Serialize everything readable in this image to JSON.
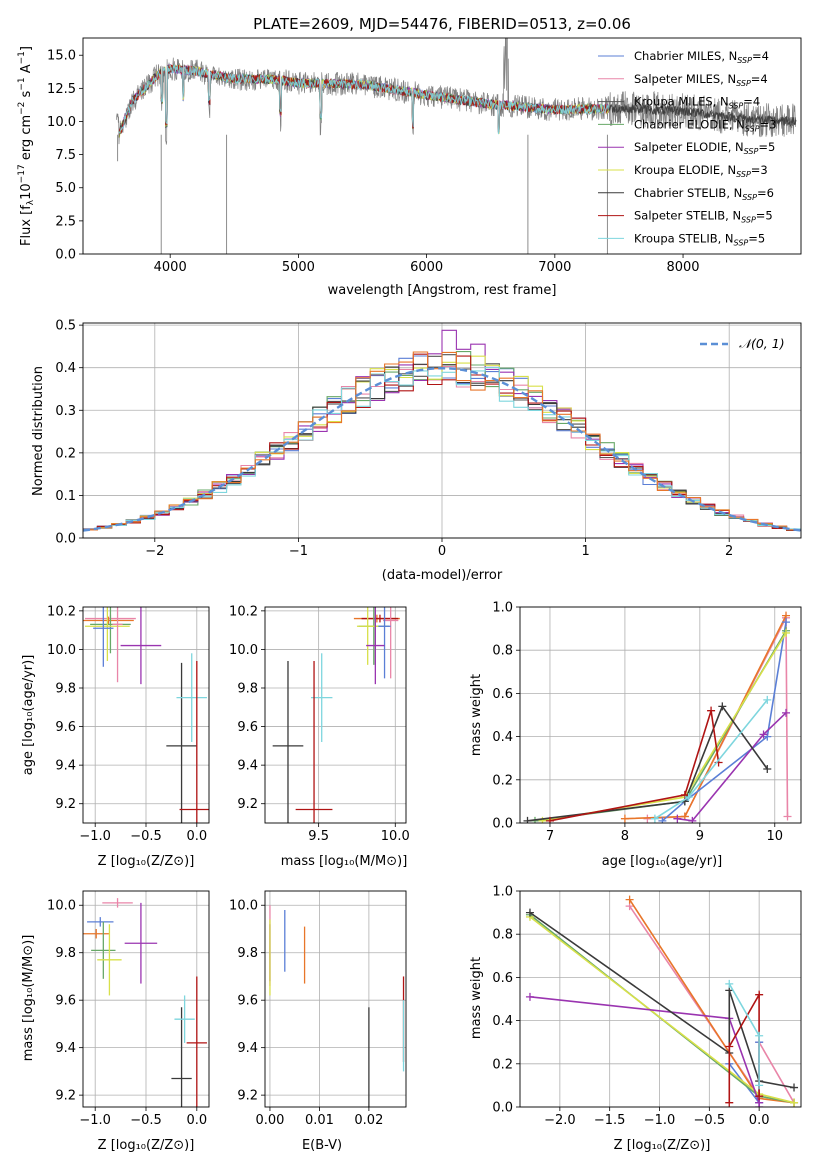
{
  "colors": {
    "chab_miles": "#5b7fd6",
    "salp_miles": "#e985a8",
    "krou_miles": "#555555",
    "chab_elodie": "#67a867",
    "salp_elodie": "#9a34b0",
    "krou_elodie": "#d8e04a",
    "chab_stelib": "#3a3a3a",
    "salp_stelib": "#b01414",
    "krou_stelib": "#7ed6de",
    "orange": "#e8762a",
    "normal": "#5b8fd6"
  },
  "chart_data": [
    {
      "id": "spectrum",
      "type": "line",
      "title": "PLATE=2609, MJD=54476, FIBERID=0513, z=0.06",
      "xlabel": "wavelength [Angstrom, rest frame]",
      "ylabel": "Flux [f_λ 10⁻¹⁷ erg cm⁻² s⁻¹ A⁻¹]",
      "xlim": [
        3320,
        8920
      ],
      "ylim": [
        0,
        16.3
      ],
      "xticks": [
        "4000",
        "5000",
        "6000",
        "7000",
        "8000"
      ],
      "yticks": [
        "0.0",
        "2.5",
        "5.0",
        "7.5",
        "10.0",
        "12.5",
        "15.0"
      ],
      "legend_position": "upper-right",
      "legend": [
        {
          "label": "Chabrier MILES, N",
          "sub": "SSP",
          "suffix": "=4",
          "color": "#5b7fd6"
        },
        {
          "label": "Salpeter MILES, N",
          "sub": "SSP",
          "suffix": "=4",
          "color": "#e985a8"
        },
        {
          "label": "Kroupa MILES, N",
          "sub": "SSP",
          "suffix": "=4",
          "color": "#555555"
        },
        {
          "label": "Chabrier ELODIE, N",
          "sub": "SSP",
          "suffix": "=3",
          "color": "#67a867"
        },
        {
          "label": "Salpeter ELODIE, N",
          "sub": "SSP",
          "suffix": "=5",
          "color": "#9a34b0"
        },
        {
          "label": "Kroupa ELODIE, N",
          "sub": "SSP",
          "suffix": "=3",
          "color": "#d8e04a"
        },
        {
          "label": "Chabrier STELIB, N",
          "sub": "SSP",
          "suffix": "=6",
          "color": "#3a3a3a"
        },
        {
          "label": "Salpeter STELIB, N",
          "sub": "SSP",
          "suffix": "=5",
          "color": "#b01414"
        },
        {
          "label": "Kroupa STELIB, N",
          "sub": "SSP",
          "suffix": "=5",
          "color": "#7ed6de"
        }
      ],
      "continuum": [
        [
          3600,
          9.0
        ],
        [
          3700,
          11.5
        ],
        [
          3800,
          12.5
        ],
        [
          3900,
          13.5
        ],
        [
          4000,
          14.0
        ],
        [
          4200,
          13.8
        ],
        [
          4500,
          13.2
        ],
        [
          4800,
          13.2
        ],
        [
          5000,
          12.9
        ],
        [
          5500,
          12.8
        ],
        [
          6000,
          12.0
        ],
        [
          6500,
          11.3
        ],
        [
          7000,
          10.9
        ],
        [
          7500,
          11.0
        ],
        [
          8000,
          10.8
        ],
        [
          8500,
          10.2
        ],
        [
          8800,
          10.0
        ]
      ],
      "absorption_lines": [
        [
          3934,
          2.5
        ],
        [
          3969,
          5.0
        ],
        [
          4102,
          2.5
        ],
        [
          4305,
          2.5
        ],
        [
          4861,
          3.0
        ],
        [
          5175,
          3.0
        ],
        [
          5893,
          3.0
        ],
        [
          6563,
          2.5
        ]
      ]
    },
    {
      "id": "residuals",
      "type": "histogram",
      "xlabel": "(data-model)/error",
      "ylabel": "Normed distribution",
      "xlim": [
        -2.5,
        2.5
      ],
      "ylim": [
        0,
        0.505
      ],
      "xticks": [
        "−2",
        "−1",
        "0",
        "1",
        "2"
      ],
      "yticks": [
        "0.0",
        "0.1",
        "0.2",
        "0.3",
        "0.4",
        "0.5"
      ],
      "legend_position": "upper-right",
      "legend": [
        {
          "label": "𝒩(0, 1)",
          "color": "#5b8fd6",
          "style": "dashed"
        }
      ],
      "bin_width": 0.1
    },
    {
      "id": "age_vs_Z",
      "type": "errorbar",
      "xlabel": "Z [log₁₀(Z/Z⊙)]",
      "ylabel": "age  [log₁₀(age/yr)]",
      "xlim": [
        -1.12,
        0.12
      ],
      "ylim": [
        9.1,
        10.22
      ],
      "xticks": [
        "−1.0",
        "−0.5",
        "0.0"
      ],
      "yticks": [
        "9.2",
        "9.4",
        "9.6",
        "9.8",
        "10.0",
        "10.2"
      ],
      "points": [
        {
          "x": -0.85,
          "y": 10.16,
          "xerr": 0.25,
          "yerr": 0.02,
          "color": "#e985a8"
        },
        {
          "x": -0.87,
          "y": 10.15,
          "xerr": 0.25,
          "yerr": 0.02,
          "color": "#e8762a"
        },
        {
          "x": -0.85,
          "y": 10.13,
          "xerr": 0.2,
          "yerr": 0.15,
          "color": "#67a867"
        },
        {
          "x": -0.88,
          "y": 10.12,
          "xerr": 0.22,
          "yerr": 0.18,
          "color": "#d8e04a"
        },
        {
          "x": -0.92,
          "y": 10.11,
          "xerr": 0.1,
          "yerr": 0.2,
          "color": "#5b7fd6"
        },
        {
          "x": -0.78,
          "y": 10.13,
          "xerr": 0.05,
          "yerr": 0.3,
          "color": "#e985a8"
        },
        {
          "x": -0.55,
          "y": 10.02,
          "xerr": 0.2,
          "yerr": 0.2,
          "color": "#9a34b0"
        },
        {
          "x": -0.15,
          "y": 9.5,
          "xerr": 0.15,
          "yerr": 0.43,
          "color": "#3a3a3a"
        },
        {
          "x": -0.05,
          "y": 9.75,
          "xerr": 0.15,
          "yerr": 0.23,
          "color": "#7ed6de"
        },
        {
          "x": 0.0,
          "y": 9.17,
          "xerr": 0.17,
          "yerr": 0.77,
          "color": "#b01414"
        }
      ]
    },
    {
      "id": "age_vs_mass",
      "type": "errorbar",
      "xlabel": "mass [log₁₀(M/M⊙)]",
      "ylabel": "",
      "xlim": [
        9.15,
        10.07
      ],
      "ylim": [
        9.1,
        10.22
      ],
      "xticks": [
        "9.5",
        "10.0"
      ],
      "yticks": [
        "9.2",
        "9.4",
        "9.6",
        "9.8",
        "10.0",
        "10.2"
      ],
      "points": [
        {
          "x": 9.88,
          "y": 10.16,
          "xerr": 0.15,
          "yerr": 0.02,
          "color": "#e8762a"
        },
        {
          "x": 9.9,
          "y": 10.16,
          "xerr": 0.12,
          "yerr": 0.02,
          "color": "#b01414"
        },
        {
          "x": 9.97,
          "y": 10.15,
          "xerr": 0.05,
          "yerr": 0.3,
          "color": "#e985a8"
        },
        {
          "x": 9.86,
          "y": 10.12,
          "xerr": 0.1,
          "yerr": 0.2,
          "color": "#67a867"
        },
        {
          "x": 9.82,
          "y": 10.12,
          "xerr": 0.07,
          "yerr": 0.2,
          "color": "#d8e04a"
        },
        {
          "x": 9.93,
          "y": 10.12,
          "xerr": 0.04,
          "yerr": 0.27,
          "color": "#5b7fd6"
        },
        {
          "x": 9.87,
          "y": 10.02,
          "xerr": 0.06,
          "yerr": 0.2,
          "color": "#9a34b0"
        },
        {
          "x": 9.3,
          "y": 9.5,
          "xerr": 0.1,
          "yerr": 0.44,
          "color": "#3a3a3a"
        },
        {
          "x": 9.52,
          "y": 9.75,
          "xerr": 0.07,
          "yerr": 0.23,
          "color": "#7ed6de"
        },
        {
          "x": 9.47,
          "y": 9.17,
          "xerr": 0.12,
          "yerr": 0.77,
          "color": "#b01414"
        }
      ]
    },
    {
      "id": "weight_vs_age",
      "type": "line",
      "xlabel": "age  [log₁₀(age/yr)]",
      "ylabel": "mass weight",
      "xlim": [
        6.6,
        10.35
      ],
      "ylim": [
        0,
        1.0
      ],
      "xticks": [
        "7",
        "8",
        "9",
        "10"
      ],
      "yticks": [
        "0.0",
        "0.2",
        "0.4",
        "0.6",
        "0.8",
        "1.0"
      ],
      "series": [
        {
          "color": "#e985a8",
          "x": [
            8.3,
            8.8,
            10.15,
            10.17
          ],
          "y": [
            0.02,
            0.03,
            0.95,
            0.03
          ]
        },
        {
          "color": "#e8762a",
          "x": [
            8.0,
            8.8,
            10.15
          ],
          "y": [
            0.02,
            0.03,
            0.96
          ]
        },
        {
          "color": "#5b7fd6",
          "x": [
            8.5,
            8.8,
            9.9,
            10.15
          ],
          "y": [
            0.01,
            0.1,
            0.4,
            0.93
          ]
        },
        {
          "color": "#67a867",
          "x": [
            6.8,
            8.8,
            10.15
          ],
          "y": [
            0.01,
            0.1,
            0.89
          ]
        },
        {
          "color": "#d8e04a",
          "x": [
            6.9,
            8.8,
            10.15
          ],
          "y": [
            0.01,
            0.12,
            0.88
          ]
        },
        {
          "color": "#9a34b0",
          "x": [
            8.7,
            8.9,
            9.85,
            10.15
          ],
          "y": [
            0.02,
            0.01,
            0.41,
            0.51
          ]
        },
        {
          "color": "#3a3a3a",
          "x": [
            6.7,
            8.8,
            9.3,
            9.9
          ],
          "y": [
            0.01,
            0.1,
            0.54,
            0.25
          ]
        },
        {
          "color": "#b01414",
          "x": [
            7.0,
            8.8,
            9.15,
            9.25
          ],
          "y": [
            0.01,
            0.13,
            0.52,
            0.28
          ]
        },
        {
          "color": "#7ed6de",
          "x": [
            8.4,
            8.85,
            9.9
          ],
          "y": [
            0.02,
            0.12,
            0.57
          ]
        }
      ]
    },
    {
      "id": "mass_vs_Z",
      "type": "errorbar",
      "xlabel": "Z [log₁₀(Z/Z⊙)]",
      "ylabel": "mass [log₁₀(M/M⊙)]",
      "xlim": [
        -1.12,
        0.12
      ],
      "ylim": [
        9.15,
        10.06
      ],
      "xticks": [
        "−1.0",
        "−0.5",
        "0.0"
      ],
      "yticks": [
        "9.2",
        "9.4",
        "9.6",
        "9.8",
        "10.0"
      ],
      "points": [
        {
          "x": -0.78,
          "y": 10.01,
          "xerr": 0.15,
          "yerr": 0.02,
          "color": "#e985a8"
        },
        {
          "x": -0.95,
          "y": 9.93,
          "xerr": 0.13,
          "yerr": 0.02,
          "color": "#5b7fd6"
        },
        {
          "x": -0.99,
          "y": 9.88,
          "xerr": 0.13,
          "yerr": 0.02,
          "color": "#e8762a"
        },
        {
          "x": -0.92,
          "y": 9.81,
          "xerr": 0.12,
          "yerr": 0.12,
          "color": "#67a867"
        },
        {
          "x": -0.86,
          "y": 9.77,
          "xerr": 0.12,
          "yerr": 0.15,
          "color": "#d8e04a"
        },
        {
          "x": -0.55,
          "y": 9.84,
          "xerr": 0.16,
          "yerr": 0.17,
          "color": "#9a34b0"
        },
        {
          "x": -0.15,
          "y": 9.27,
          "xerr": 0.1,
          "yerr": 0.3,
          "color": "#3a3a3a"
        },
        {
          "x": -0.12,
          "y": 9.52,
          "xerr": 0.1,
          "yerr": 0.1,
          "color": "#7ed6de"
        },
        {
          "x": 0.0,
          "y": 9.42,
          "xerr": 0.1,
          "yerr": 0.28,
          "color": "#b01414"
        }
      ]
    },
    {
      "id": "mass_vs_ebv",
      "type": "errorbar",
      "xlabel": "E(B-V)",
      "ylabel": "",
      "xlim": [
        -0.001,
        0.0275
      ],
      "ylim": [
        9.15,
        10.06
      ],
      "xticks": [
        "0.00",
        "0.01",
        "0.02"
      ],
      "yticks": [
        "9.2",
        "9.4",
        "9.6",
        "9.8",
        "10.0"
      ],
      "points": [
        {
          "x": 0.0,
          "y": 9.83,
          "yerr": 0.17,
          "color": "#e985a8"
        },
        {
          "x": 0.0,
          "y": 9.8,
          "yerr": 0.12,
          "color": "#9a34b0"
        },
        {
          "x": 0.0,
          "y": 9.78,
          "yerr": 0.16,
          "color": "#d8e04a"
        },
        {
          "x": 0.003,
          "y": 9.85,
          "yerr": 0.13,
          "color": "#5b7fd6"
        },
        {
          "x": 0.007,
          "y": 9.79,
          "yerr": 0.12,
          "color": "#e8762a"
        },
        {
          "x": 0.02,
          "y": 9.35,
          "yerr": 0.22,
          "color": "#3a3a3a"
        },
        {
          "x": 0.027,
          "y": 9.52,
          "yerr": 0.18,
          "color": "#b01414"
        },
        {
          "x": 0.027,
          "y": 9.45,
          "yerr": 0.15,
          "color": "#7ed6de"
        }
      ]
    },
    {
      "id": "weight_vs_Z",
      "type": "line",
      "xlabel": "Z [log₁₀(Z/Z⊙)]",
      "ylabel": "mass weight",
      "xlim": [
        -2.4,
        0.42
      ],
      "ylim": [
        0,
        1.0
      ],
      "xticks": [
        "−2.0",
        "−1.5",
        "−1.0",
        "−0.5",
        "0.0"
      ],
      "yticks": [
        "0.0",
        "0.2",
        "0.4",
        "0.6",
        "0.8",
        "1.0"
      ],
      "series": [
        {
          "color": "#e985a8",
          "x": [
            -1.3,
            0.0,
            0.0,
            0.35
          ],
          "y": [
            0.93,
            0.05,
            0.3,
            0.02
          ]
        },
        {
          "color": "#e8762a",
          "x": [
            -1.3,
            0.0,
            0.35
          ],
          "y": [
            0.96,
            0.04,
            0.02
          ]
        },
        {
          "color": "#5b7fd6",
          "x": [
            -0.3,
            0.0,
            0.0
          ],
          "y": [
            0.2,
            0.02,
            0.3
          ]
        },
        {
          "color": "#67a867",
          "x": [
            -2.3,
            0.0,
            0.35
          ],
          "y": [
            0.89,
            0.05,
            0.02
          ]
        },
        {
          "color": "#d8e04a",
          "x": [
            -2.3,
            0.0,
            0.35
          ],
          "y": [
            0.88,
            0.06,
            0.02
          ]
        },
        {
          "color": "#9a34b0",
          "x": [
            -2.3,
            -0.3,
            0.0,
            0.0
          ],
          "y": [
            0.51,
            0.41,
            0.02,
            0.0
          ]
        },
        {
          "color": "#3a3a3a",
          "x": [
            -2.3,
            -0.3,
            -0.3,
            0.0,
            0.35
          ],
          "y": [
            0.9,
            0.25,
            0.54,
            0.12,
            0.09
          ]
        },
        {
          "color": "#b01414",
          "x": [
            -0.3,
            -0.3,
            0.0,
            0.0
          ],
          "y": [
            0.02,
            0.28,
            0.52,
            0.05
          ]
        },
        {
          "color": "#7ed6de",
          "x": [
            -0.3,
            0.0,
            0.0
          ],
          "y": [
            0.57,
            0.33,
            0.1
          ]
        }
      ]
    }
  ]
}
